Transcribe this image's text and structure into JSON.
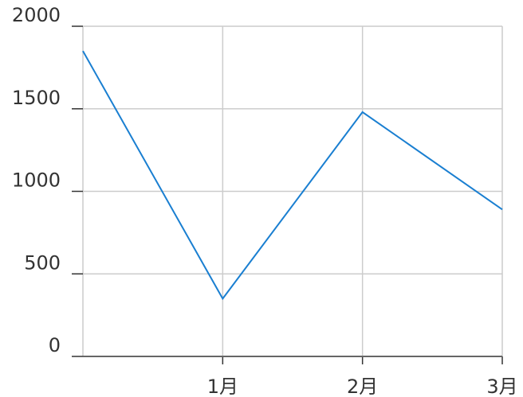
{
  "chart_data": {
    "type": "line",
    "title": "",
    "xlabel": "",
    "ylabel": "",
    "x_tick_labels": [
      "1月",
      "2月",
      "3月"
    ],
    "y_tick_labels": [
      "0",
      "500",
      "1000",
      "1500",
      "2000"
    ],
    "ylim": [
      0,
      2000
    ],
    "grid": true,
    "series": [
      {
        "name": "",
        "x": [
          0,
          1,
          2,
          3
        ],
        "values": [
          1850,
          350,
          1480,
          890
        ],
        "color": "#1a7fd1"
      }
    ]
  }
}
